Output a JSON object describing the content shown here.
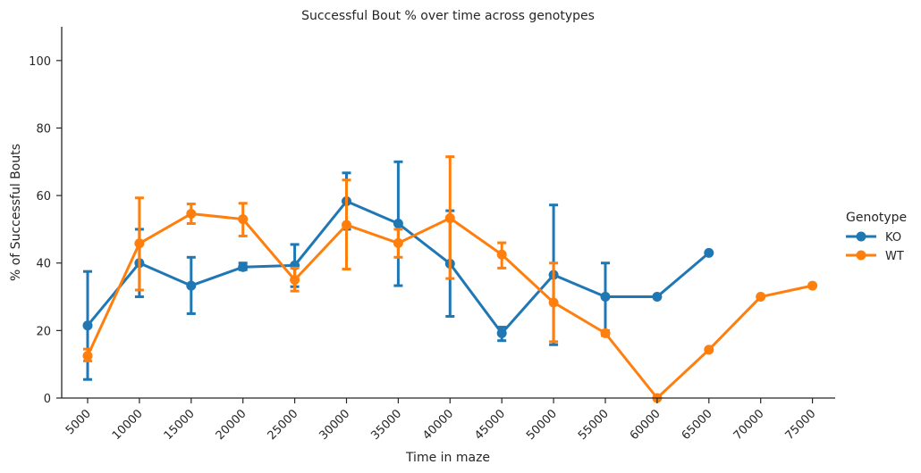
{
  "chart_data": {
    "type": "line",
    "title": "Successful Bout % over time across genotypes",
    "xlabel": "Time in maze",
    "ylabel": "% of Successful Bouts",
    "categories": [
      "5000",
      "10000",
      "15000",
      "20000",
      "25000",
      "30000",
      "35000",
      "40000",
      "45000",
      "50000",
      "55000",
      "60000",
      "65000",
      "70000",
      "75000"
    ],
    "y_ticks": [
      0,
      20,
      40,
      60,
      80,
      100
    ],
    "ylim": [
      0,
      110
    ],
    "grid": false,
    "legend": {
      "title": "Genotype",
      "placement": "right"
    },
    "series": [
      {
        "name": "KO",
        "color": "#1f77b4",
        "values": [
          21.5,
          40,
          33.3,
          38.8,
          39.3,
          58.3,
          51.7,
          39.8,
          19.2,
          36.5,
          30,
          30,
          43,
          null,
          null
        ],
        "err_low": [
          5.5,
          30,
          25,
          38,
          33,
          50,
          33.3,
          24.2,
          17,
          15.8,
          19,
          null,
          null,
          null,
          null
        ],
        "err_high": [
          37.5,
          50,
          41.7,
          40,
          45.5,
          66.7,
          70,
          55.5,
          21,
          57.2,
          40,
          null,
          null,
          null,
          null
        ]
      },
      {
        "name": "WT",
        "color": "#ff7f0e",
        "values": [
          12.5,
          45.8,
          54.6,
          53,
          35,
          51.3,
          45.9,
          53.3,
          42.5,
          28.3,
          19.2,
          0,
          14.3,
          30,
          33.3
        ],
        "err_low": [
          11,
          32,
          51.7,
          48,
          31.7,
          38.2,
          41.7,
          35.4,
          38.5,
          16.7,
          18.5,
          null,
          null,
          null,
          null
        ],
        "err_high": [
          14.5,
          59.3,
          57.5,
          57.7,
          38.5,
          64.6,
          50,
          71.5,
          46,
          40,
          20,
          null,
          null,
          null,
          null
        ]
      }
    ]
  }
}
